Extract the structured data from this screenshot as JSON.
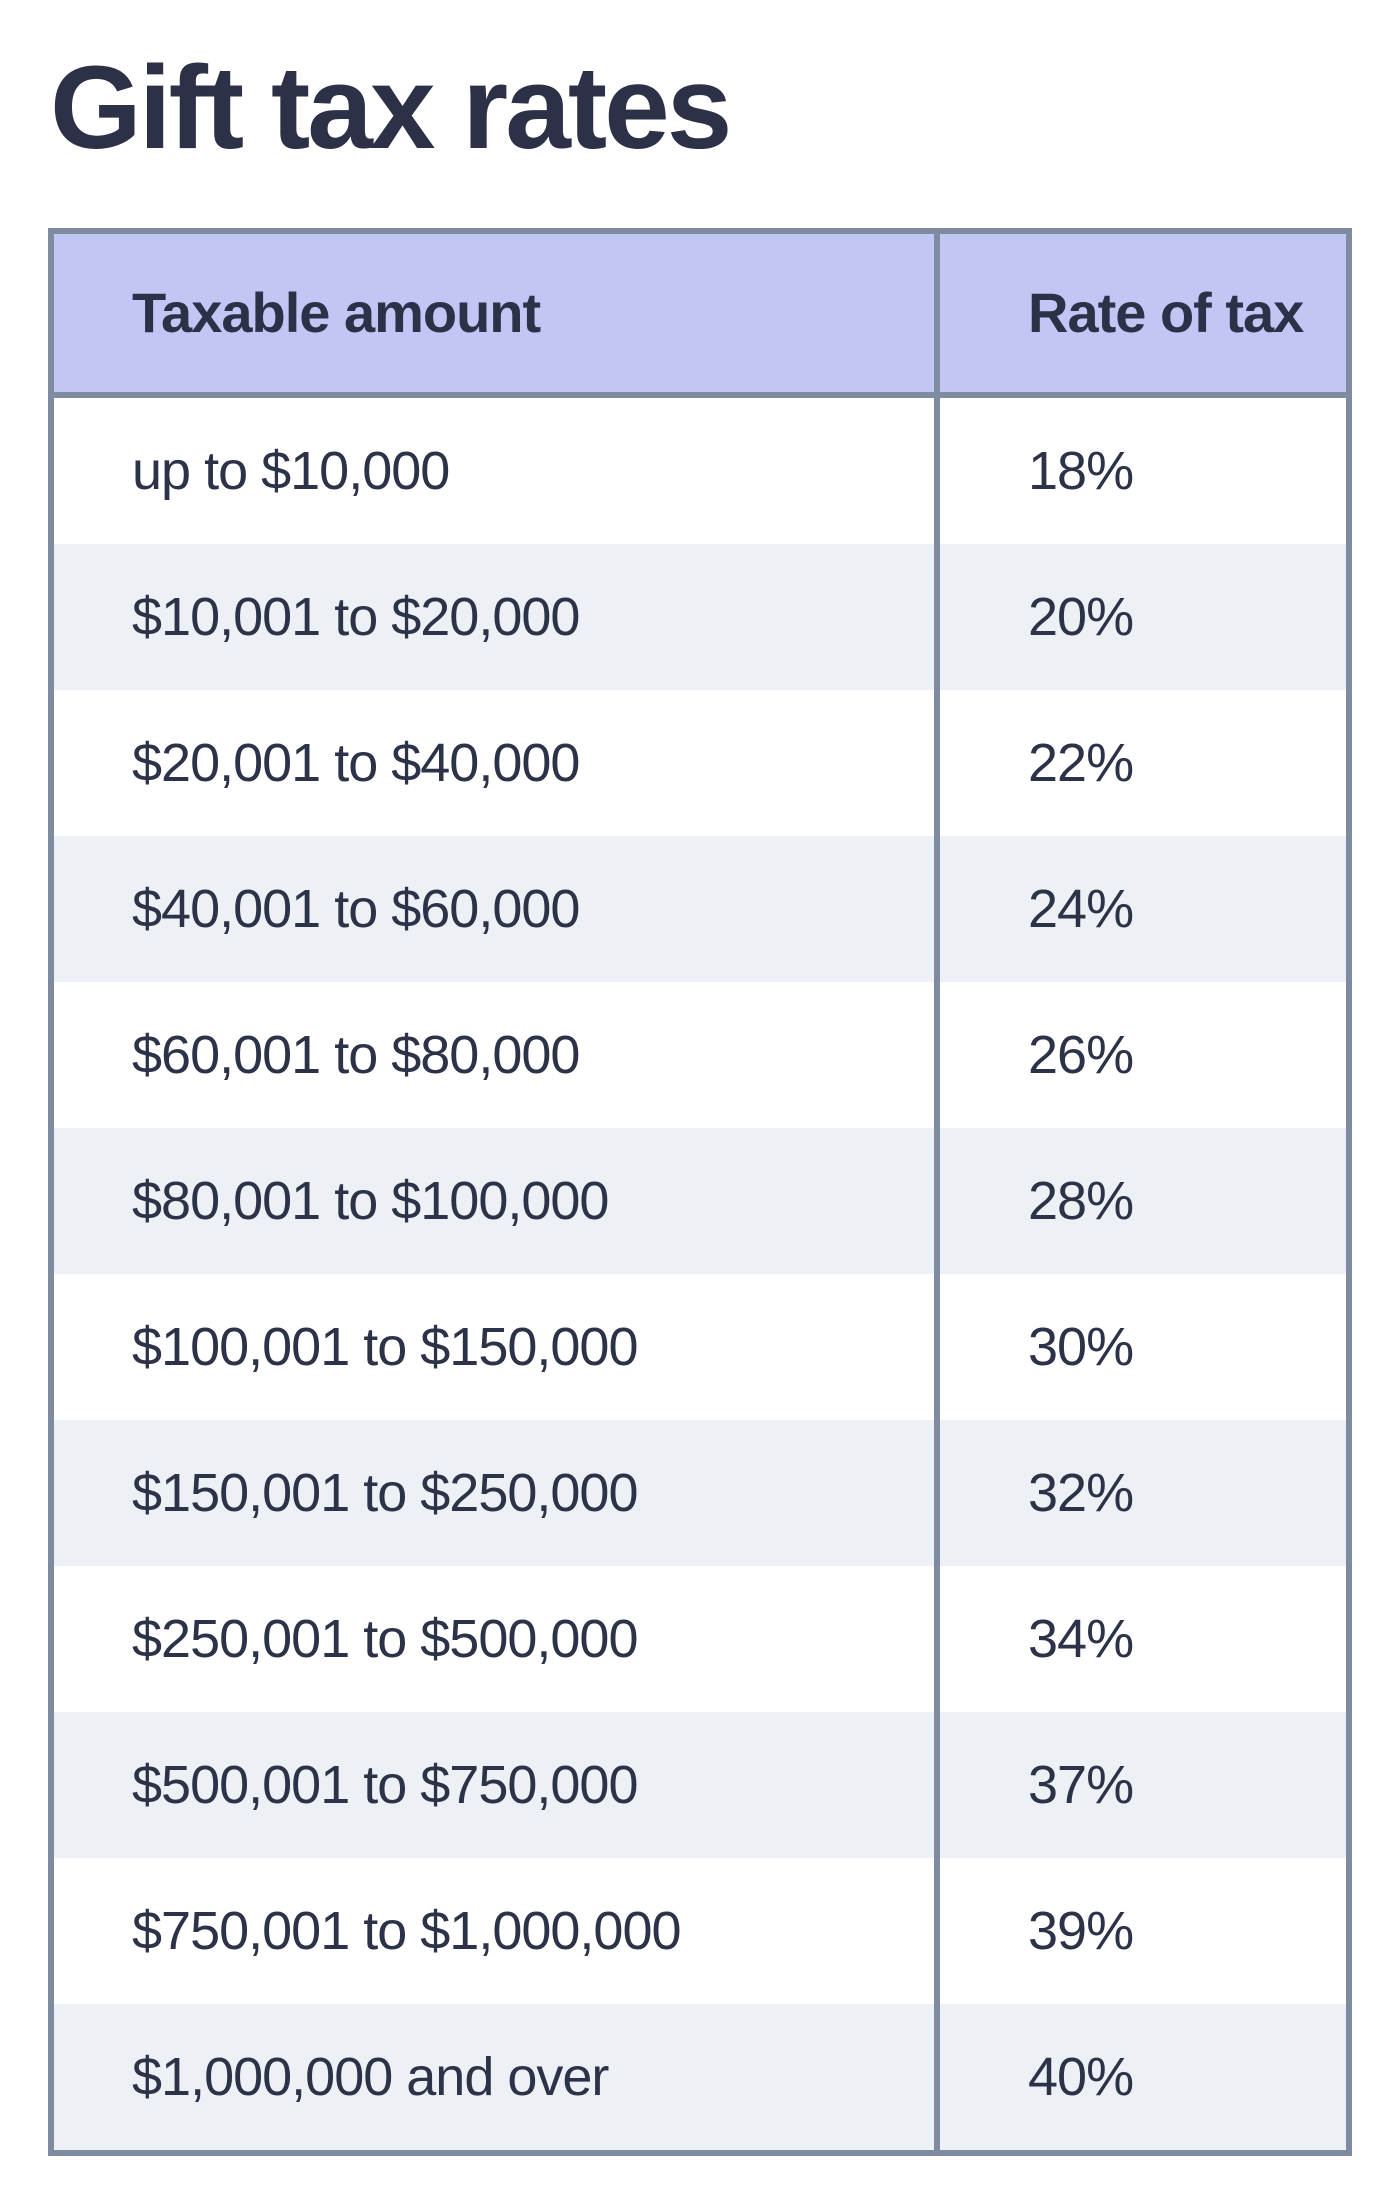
{
  "page": {
    "title": "Gift tax rates"
  },
  "colors": {
    "header_bg": "#c2c6f5",
    "alt_row_bg": "#edf0f5",
    "border": "#7f8ba0",
    "text": "#2c3247",
    "page_bg": "#ffffff"
  },
  "table": {
    "columns": [
      "Taxable amount",
      "Rate of tax"
    ],
    "rows": [
      {
        "amount": "up to $10,000",
        "rate": "18%"
      },
      {
        "amount": "$10,001 to $20,000",
        "rate": "20%"
      },
      {
        "amount": "$20,001 to $40,000",
        "rate": "22%"
      },
      {
        "amount": "$40,001 to $60,000",
        "rate": "24%"
      },
      {
        "amount": "$60,001 to $80,000",
        "rate": "26%"
      },
      {
        "amount": "$80,001 to $100,000",
        "rate": "28%"
      },
      {
        "amount": "$100,001 to $150,000",
        "rate": "30%"
      },
      {
        "amount": "$150,001 to $250,000",
        "rate": "32%"
      },
      {
        "amount": "$250,001 to $500,000",
        "rate": "34%"
      },
      {
        "amount": "$500,001 to $750,000",
        "rate": "37%"
      },
      {
        "amount": "$750,001 to $1,000,000",
        "rate": "39%"
      },
      {
        "amount": "$1,000,000 and over",
        "rate": "40%"
      }
    ]
  }
}
